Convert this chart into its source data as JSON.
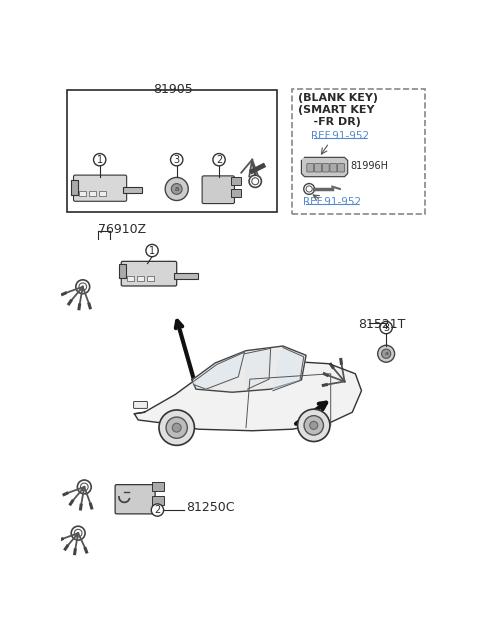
{
  "bg_color": "#ffffff",
  "part_numbers": {
    "top_box": "81905",
    "left_cylinder": "76910Z",
    "trunk_cylinder": "81521T",
    "door_cylinder": "81250C",
    "blank_key_part": "81996H"
  },
  "labels": {
    "blank_key_box_line1": "(BLANK KEY)",
    "blank_key_box_line2": "(SMART KEY",
    "blank_key_box_line3": "    -FR DR)",
    "ref_label1": "REF.91-952",
    "part_81996H": "81996H",
    "ref_label2": "REF.91-952"
  },
  "callout_numbers": [
    "1",
    "2",
    "3"
  ],
  "text_color": "#2a2a2a",
  "line_color": "#2a2a2a",
  "box_border_color": "#2a2a2a",
  "dashed_border_color": "#888888",
  "ref_link_color": "#5588cc",
  "part_gray": "#cccccc",
  "part_dark_gray": "#aaaaaa",
  "part_light_gray": "#dddddd"
}
